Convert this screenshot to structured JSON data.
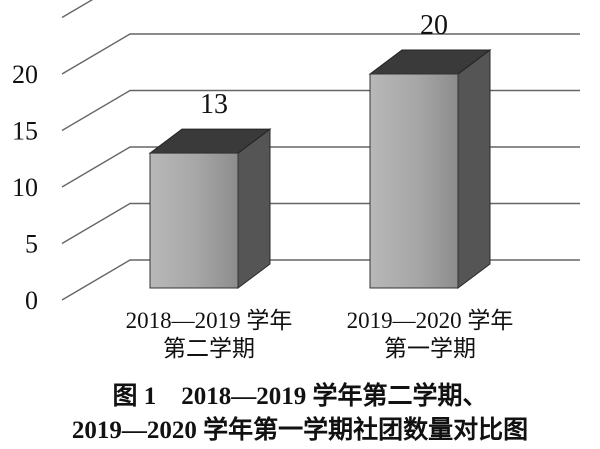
{
  "chart_data": {
    "type": "bar",
    "style": "3d-column",
    "categories": [
      [
        "2018—2019 学年",
        "第二学期"
      ],
      [
        "2019—2020 学年",
        "第一学期"
      ]
    ],
    "values": [
      13,
      20
    ],
    "data_labels": [
      "13",
      "20"
    ],
    "yticks": [
      "0",
      "5",
      "10",
      "15",
      "20"
    ],
    "ylim": [
      0,
      25
    ],
    "grid": true,
    "legend": "none",
    "caption": [
      "图 1　2018—2019 学年第二学期、",
      "2019—2020 学年第一学期社团数量对比图"
    ],
    "colors": {
      "bar_front": "#a6a6a6",
      "bar_side": "#555555",
      "bar_top": "#3a3a3a",
      "grid": "#666666"
    }
  }
}
